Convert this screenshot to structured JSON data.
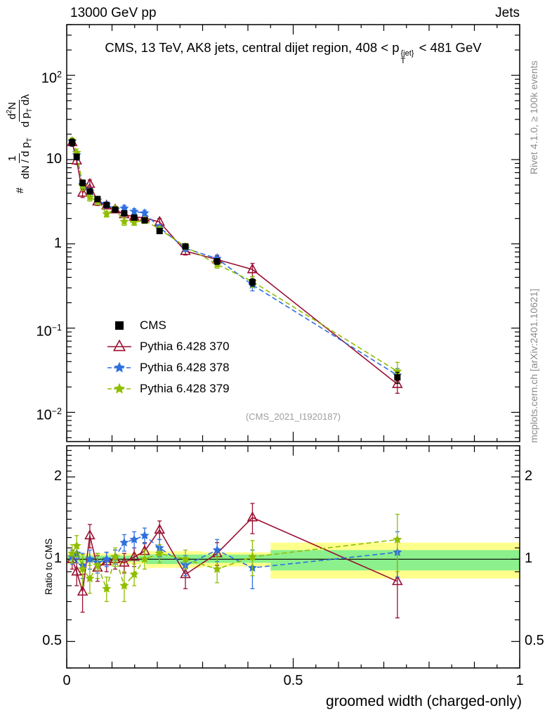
{
  "header": {
    "left": "13000 GeV pp",
    "right": "Jets"
  },
  "captions": {
    "rivet": "Rivet 4.1.0, ≥ 100k events",
    "mcplots": "mcplots.cern.ch [arXiv:2401.10621]"
  },
  "chart_data": {
    "type": "line",
    "title_parts": [
      {
        "text": "CMS, 13 TeV, AK8 jets, central dijet region, 408 < p"
      },
      {
        "sup": "{jet}",
        "sub": "T"
      },
      {
        "text": " < 481 GeV"
      }
    ],
    "xlabel": "groomed width (charged-only)",
    "ylabel": {
      "prefix": "#",
      "frac1": {
        "num": [
          {
            "text": "1"
          }
        ],
        "den": [
          {
            "text": "dN / d p"
          },
          {
            "sub": "T"
          }
        ]
      },
      "frac2": {
        "num": [
          {
            "text": "d"
          },
          {
            "sup": "2"
          },
          {
            "text": "N"
          }
        ],
        "den": [
          {
            "text": "d p"
          },
          {
            "sub": "T"
          },
          {
            "text": " dλ"
          }
        ]
      }
    },
    "ratio_label": "Ratio to CMS",
    "watermark": "(CMS_2021_I1920187)",
    "xlim": [
      0,
      1
    ],
    "ylim": [
      0.0045,
      400
    ],
    "ratio_ylim": [
      0.4,
      2.6
    ],
    "xticks": [
      {
        "v": 0,
        "label": "0"
      },
      {
        "v": 0.5,
        "label": "0.5"
      },
      {
        "v": 1,
        "label": "1"
      }
    ],
    "yticks": [
      {
        "v": 100,
        "label_parts": [
          {
            "text": "10"
          },
          {
            "sup": "2"
          }
        ]
      },
      {
        "v": 10,
        "label_parts": [
          {
            "text": "10"
          }
        ]
      },
      {
        "v": 1,
        "label_parts": [
          {
            "text": "1"
          }
        ]
      },
      {
        "v": 0.1,
        "label_parts": [
          {
            "text": "10"
          },
          {
            "sup": "−1"
          }
        ]
      },
      {
        "v": 0.01,
        "label_parts": [
          {
            "text": "10"
          },
          {
            "sup": "−2"
          }
        ]
      }
    ],
    "ratio_yticks": [
      {
        "v": 2,
        "label": "2"
      },
      {
        "v": 1,
        "label": "1"
      },
      {
        "v": 0.5,
        "label": "0.5"
      }
    ],
    "x": [
      0.012,
      0.022,
      0.035,
      0.051,
      0.068,
      0.088,
      0.107,
      0.127,
      0.149,
      0.172,
      0.205,
      0.262,
      0.332,
      0.41,
      0.73
    ],
    "series": [
      {
        "name": "CMS",
        "color": "#000000",
        "marker": "square",
        "line": "none",
        "values": [
          16,
          10.8,
          5.3,
          4.2,
          3.4,
          2.9,
          2.55,
          2.3,
          2.05,
          1.9,
          1.42,
          0.93,
          0.62,
          0.35,
          0.026
        ],
        "rel_err": [
          0.1,
          0.08,
          0.08,
          0.07,
          0.07,
          0.06,
          0.06,
          0.06,
          0.06,
          0.06,
          0.07,
          0.07,
          0.08,
          0.1,
          0.15
        ]
      },
      {
        "name": "Pythia 6.428 370",
        "color": "#9a1032",
        "marker": "triangle",
        "line": "solid",
        "ratio": [
          1.0,
          0.9,
          0.76,
          1.22,
          0.93,
          0.98,
          1.0,
          0.97,
          1.02,
          1.07,
          1.28,
          0.88,
          1.05,
          1.42,
          0.83
        ],
        "ratio_err": [
          0.08,
          0.1,
          0.12,
          0.12,
          0.1,
          0.08,
          0.08,
          0.08,
          0.08,
          0.08,
          0.1,
          0.1,
          0.1,
          0.18,
          0.22
        ]
      },
      {
        "name": "Pythia 6.428 378",
        "color": "#2f6fdf",
        "marker": "star",
        "line": "dashed",
        "ratio": [
          1.02,
          1.05,
          0.95,
          1.0,
          0.97,
          1.0,
          1.02,
          1.15,
          1.18,
          1.22,
          1.1,
          0.95,
          1.08,
          0.93,
          1.06
        ],
        "ratio_err": [
          0.06,
          0.08,
          0.1,
          0.08,
          0.08,
          0.06,
          0.06,
          0.08,
          0.08,
          0.08,
          0.08,
          0.08,
          0.1,
          0.15,
          0.2
        ]
      },
      {
        "name": "Pythia 6.428 379",
        "color": "#8fbe00",
        "marker": "star",
        "line": "dashed",
        "ratio": [
          1.05,
          1.12,
          0.92,
          0.85,
          0.95,
          0.78,
          1.02,
          0.8,
          0.88,
          1.0,
          1.05,
          1.0,
          0.92,
          1.02,
          1.18
        ],
        "ratio_err": [
          0.08,
          0.1,
          0.12,
          0.1,
          0.1,
          0.08,
          0.08,
          0.1,
          0.08,
          0.08,
          0.08,
          0.08,
          0.1,
          0.15,
          0.28
        ]
      }
    ],
    "bands": [
      {
        "x0": 0.0,
        "x1": 0.175,
        "yellow": [
          0.96,
          1.05
        ],
        "green": [
          0.98,
          1.03
        ]
      },
      {
        "x0": 0.175,
        "x1": 0.3,
        "yellow": [
          0.93,
          1.07
        ],
        "green": [
          0.96,
          1.04
        ]
      },
      {
        "x0": 0.3,
        "x1": 0.45,
        "yellow": [
          0.94,
          1.06
        ],
        "green": [
          0.97,
          1.04
        ]
      },
      {
        "x0": 0.45,
        "x1": 1.0,
        "yellow": [
          0.85,
          1.15
        ],
        "green": [
          0.91,
          1.08
        ]
      }
    ],
    "colors": {
      "band_yellow": "#ffff8c",
      "band_green": "#8cf08c"
    }
  }
}
